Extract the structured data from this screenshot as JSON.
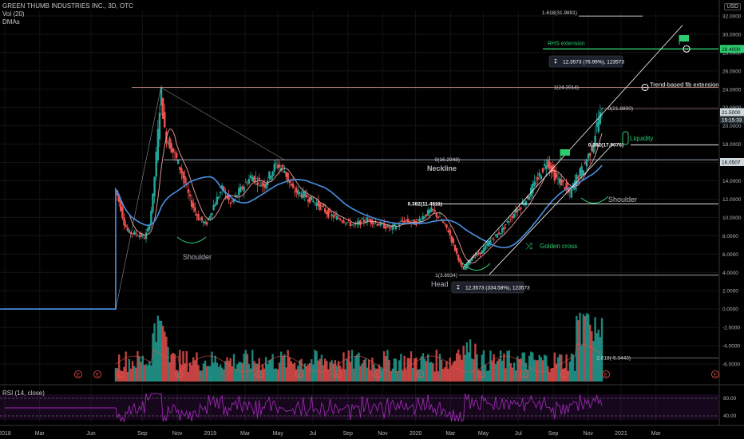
{
  "legend": {
    "symbol": "GREEN THUMB INDUSTRIES INC., 3D, OTC",
    "vol": "Vol (20)",
    "dmas": "DMAs",
    "currency": "USD"
  },
  "rsi_label": "RSI (14, close)",
  "colors": {
    "up": "#26a69a",
    "down": "#ef5350",
    "sma_fast": "#f0a0a0",
    "sma_slow": "#4a90e2",
    "fib": "#ffffff",
    "neckline": "#b0c4de",
    "annotation_green": "#2ecc71",
    "rsi": "#9c27b0",
    "price_tag": "#cfd8dc"
  },
  "annotations": {
    "rhs_extension": "RHS extension",
    "rhs_value": "28.4000",
    "fib_trend": "Trend-based fib extension",
    "fib_1618": "1.618(31.9891)",
    "fib_1": "1(24.2014)",
    "fib_0": "0(21.8800)",
    "fib_0382_top": "0.382(17.9076)",
    "measure_top": "12.3573 (76.99%), 123573",
    "measure_bottom": "12.3573 (334.58%), 123573",
    "neckline_fib": "0(16.2948)",
    "neckline": "Neckline",
    "fib_0382_mid": "0.382(11.4811)",
    "head_fib": "1(3.6934)",
    "head": "Head",
    "shoulder_left": "Shoulder",
    "shoulder_right": "Shoulder",
    "golden_cross": "Golden cross",
    "liquidity": "Liquidity",
    "fib_2618": "2.618(-5.3443)",
    "last_price": "21.5000",
    "countdown": "15:15:33",
    "neckline_price": "16.0507"
  },
  "chart_data": {
    "type": "candlestick",
    "title": "GREEN THUMB INDUSTRIES INC., 3D, OTC",
    "x_axis": {
      "ticks": [
        "2018",
        "Mar",
        "Jun",
        "Sep",
        "Nov",
        "2019",
        "Mar",
        "May",
        "Jul",
        "Sep",
        "Nov",
        "2020",
        "Mar",
        "May",
        "Jul",
        "Sep",
        "Nov",
        "2021",
        "Mar"
      ]
    },
    "y_axis": {
      "ticks": [
        "32.0000",
        "30.0000",
        "28.0000",
        "26.0000",
        "24.0000",
        "22.0000",
        "20.0000",
        "18.0000",
        "16.0000",
        "14.0000",
        "12.0000",
        "10.0000",
        "8.0000",
        "6.0000",
        "4.0000",
        "2.0000",
        "0.0000",
        "-2.0000",
        "-4.0000",
        "-6.0000",
        "-8.0000"
      ],
      "range": [
        -8,
        33
      ]
    },
    "rsi_axis": {
      "ticks": [
        "80.00",
        "40.00"
      ]
    },
    "price_path": [
      [
        2018.54,
        13.0
      ],
      [
        2018.56,
        11.5
      ],
      [
        2018.58,
        9.5
      ],
      [
        2018.6,
        8.4
      ],
      [
        2018.64,
        8.2
      ],
      [
        2018.68,
        7.8
      ],
      [
        2018.7,
        8.8
      ],
      [
        2018.72,
        12.0
      ],
      [
        2018.74,
        17.5
      ],
      [
        2018.76,
        24.0
      ],
      [
        2018.78,
        19.0
      ],
      [
        2018.82,
        17.2
      ],
      [
        2018.86,
        15.0
      ],
      [
        2018.9,
        12.0
      ],
      [
        2018.94,
        10.0
      ],
      [
        2018.98,
        9.2
      ],
      [
        2019.02,
        11.5
      ],
      [
        2019.06,
        13.2
      ],
      [
        2019.1,
        11.4
      ],
      [
        2019.14,
        12.8
      ],
      [
        2019.2,
        14.5
      ],
      [
        2019.26,
        13.5
      ],
      [
        2019.32,
        15.8
      ],
      [
        2019.36,
        15.2
      ],
      [
        2019.4,
        13.0
      ],
      [
        2019.46,
        12.4
      ],
      [
        2019.52,
        11.5
      ],
      [
        2019.58,
        10.3
      ],
      [
        2019.64,
        9.8
      ],
      [
        2019.7,
        9.1
      ],
      [
        2019.76,
        9.8
      ],
      [
        2019.82,
        9.3
      ],
      [
        2019.88,
        8.8
      ],
      [
        2019.94,
        9.6
      ],
      [
        2020.0,
        9.4
      ],
      [
        2020.04,
        10.2
      ],
      [
        2020.08,
        10.8
      ],
      [
        2020.12,
        9.8
      ],
      [
        2020.16,
        8.5
      ],
      [
        2020.2,
        6.0
      ],
      [
        2020.23,
        4.2
      ],
      [
        2020.27,
        5.6
      ],
      [
        2020.32,
        6.2
      ],
      [
        2020.36,
        7.4
      ],
      [
        2020.42,
        8.6
      ],
      [
        2020.48,
        10.5
      ],
      [
        2020.54,
        12.0
      ],
      [
        2020.6,
        14.5
      ],
      [
        2020.64,
        16.2
      ],
      [
        2020.68,
        14.4
      ],
      [
        2020.72,
        13.6
      ],
      [
        2020.75,
        12.4
      ],
      [
        2020.78,
        14.2
      ],
      [
        2020.82,
        15.6
      ],
      [
        2020.86,
        17.8
      ],
      [
        2020.89,
        20.8
      ],
      [
        2020.91,
        21.5
      ]
    ],
    "volume_profile": "heavy spikes Sep 2018 and Oct-Nov 2020",
    "rsi_range": [
      30,
      85
    ]
  }
}
